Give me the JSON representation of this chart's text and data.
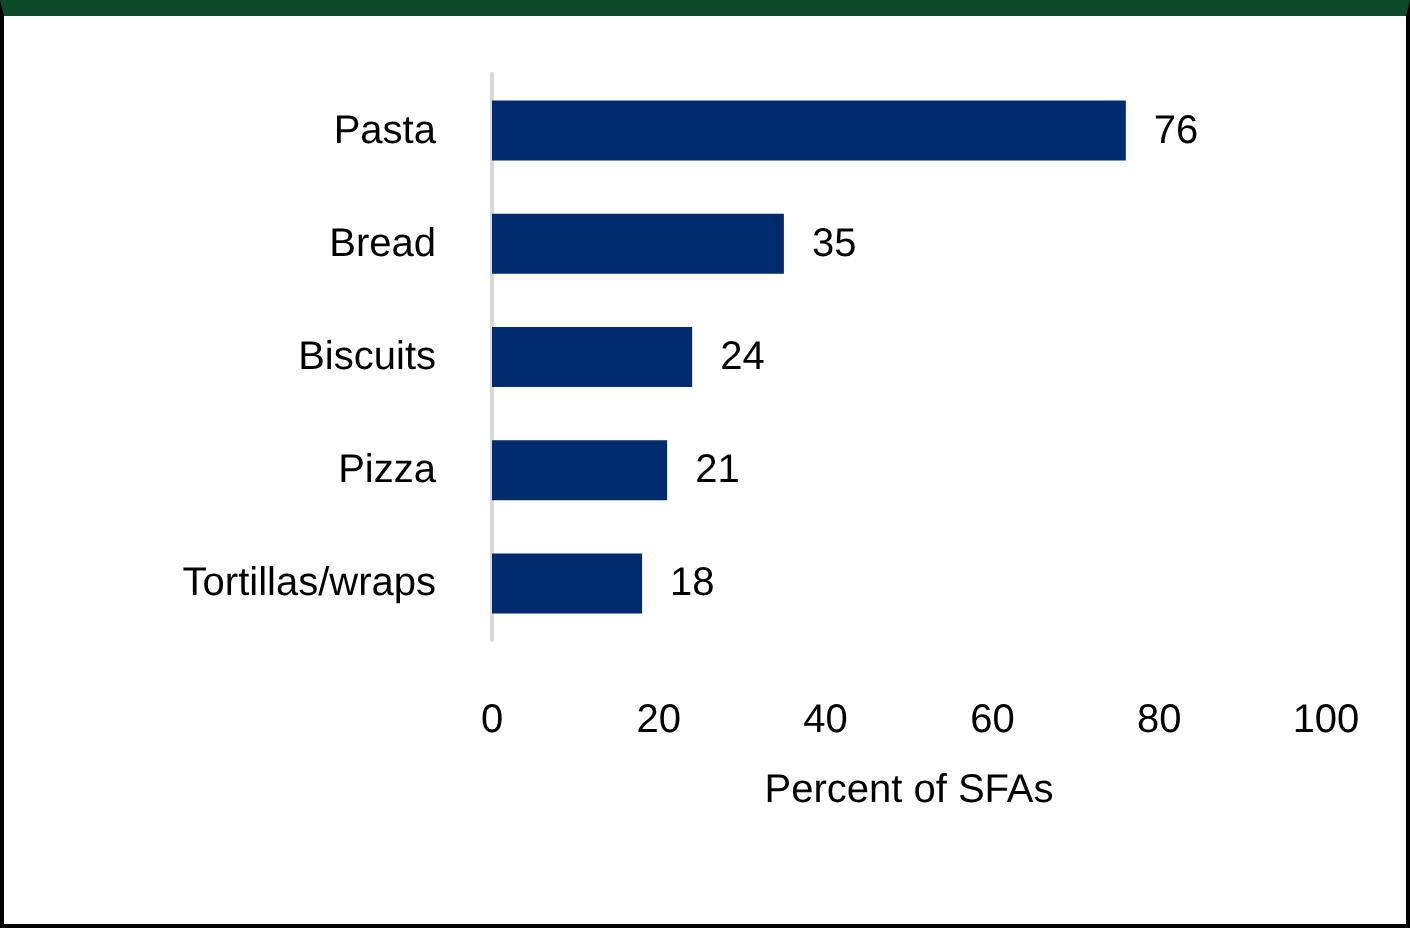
{
  "chart_data": {
    "type": "bar",
    "orientation": "horizontal",
    "categories": [
      "Pasta",
      "Bread",
      "Biscuits",
      "Pizza",
      "Tortillas/wraps"
    ],
    "values": [
      76,
      35,
      24,
      21,
      18
    ],
    "color": "#002b6e",
    "data_labels": true,
    "xlabel": "Percent of SFAs",
    "xlim": [
      0,
      100
    ],
    "xticks": [
      0,
      20,
      40,
      60,
      80,
      100
    ],
    "grid": false
  }
}
